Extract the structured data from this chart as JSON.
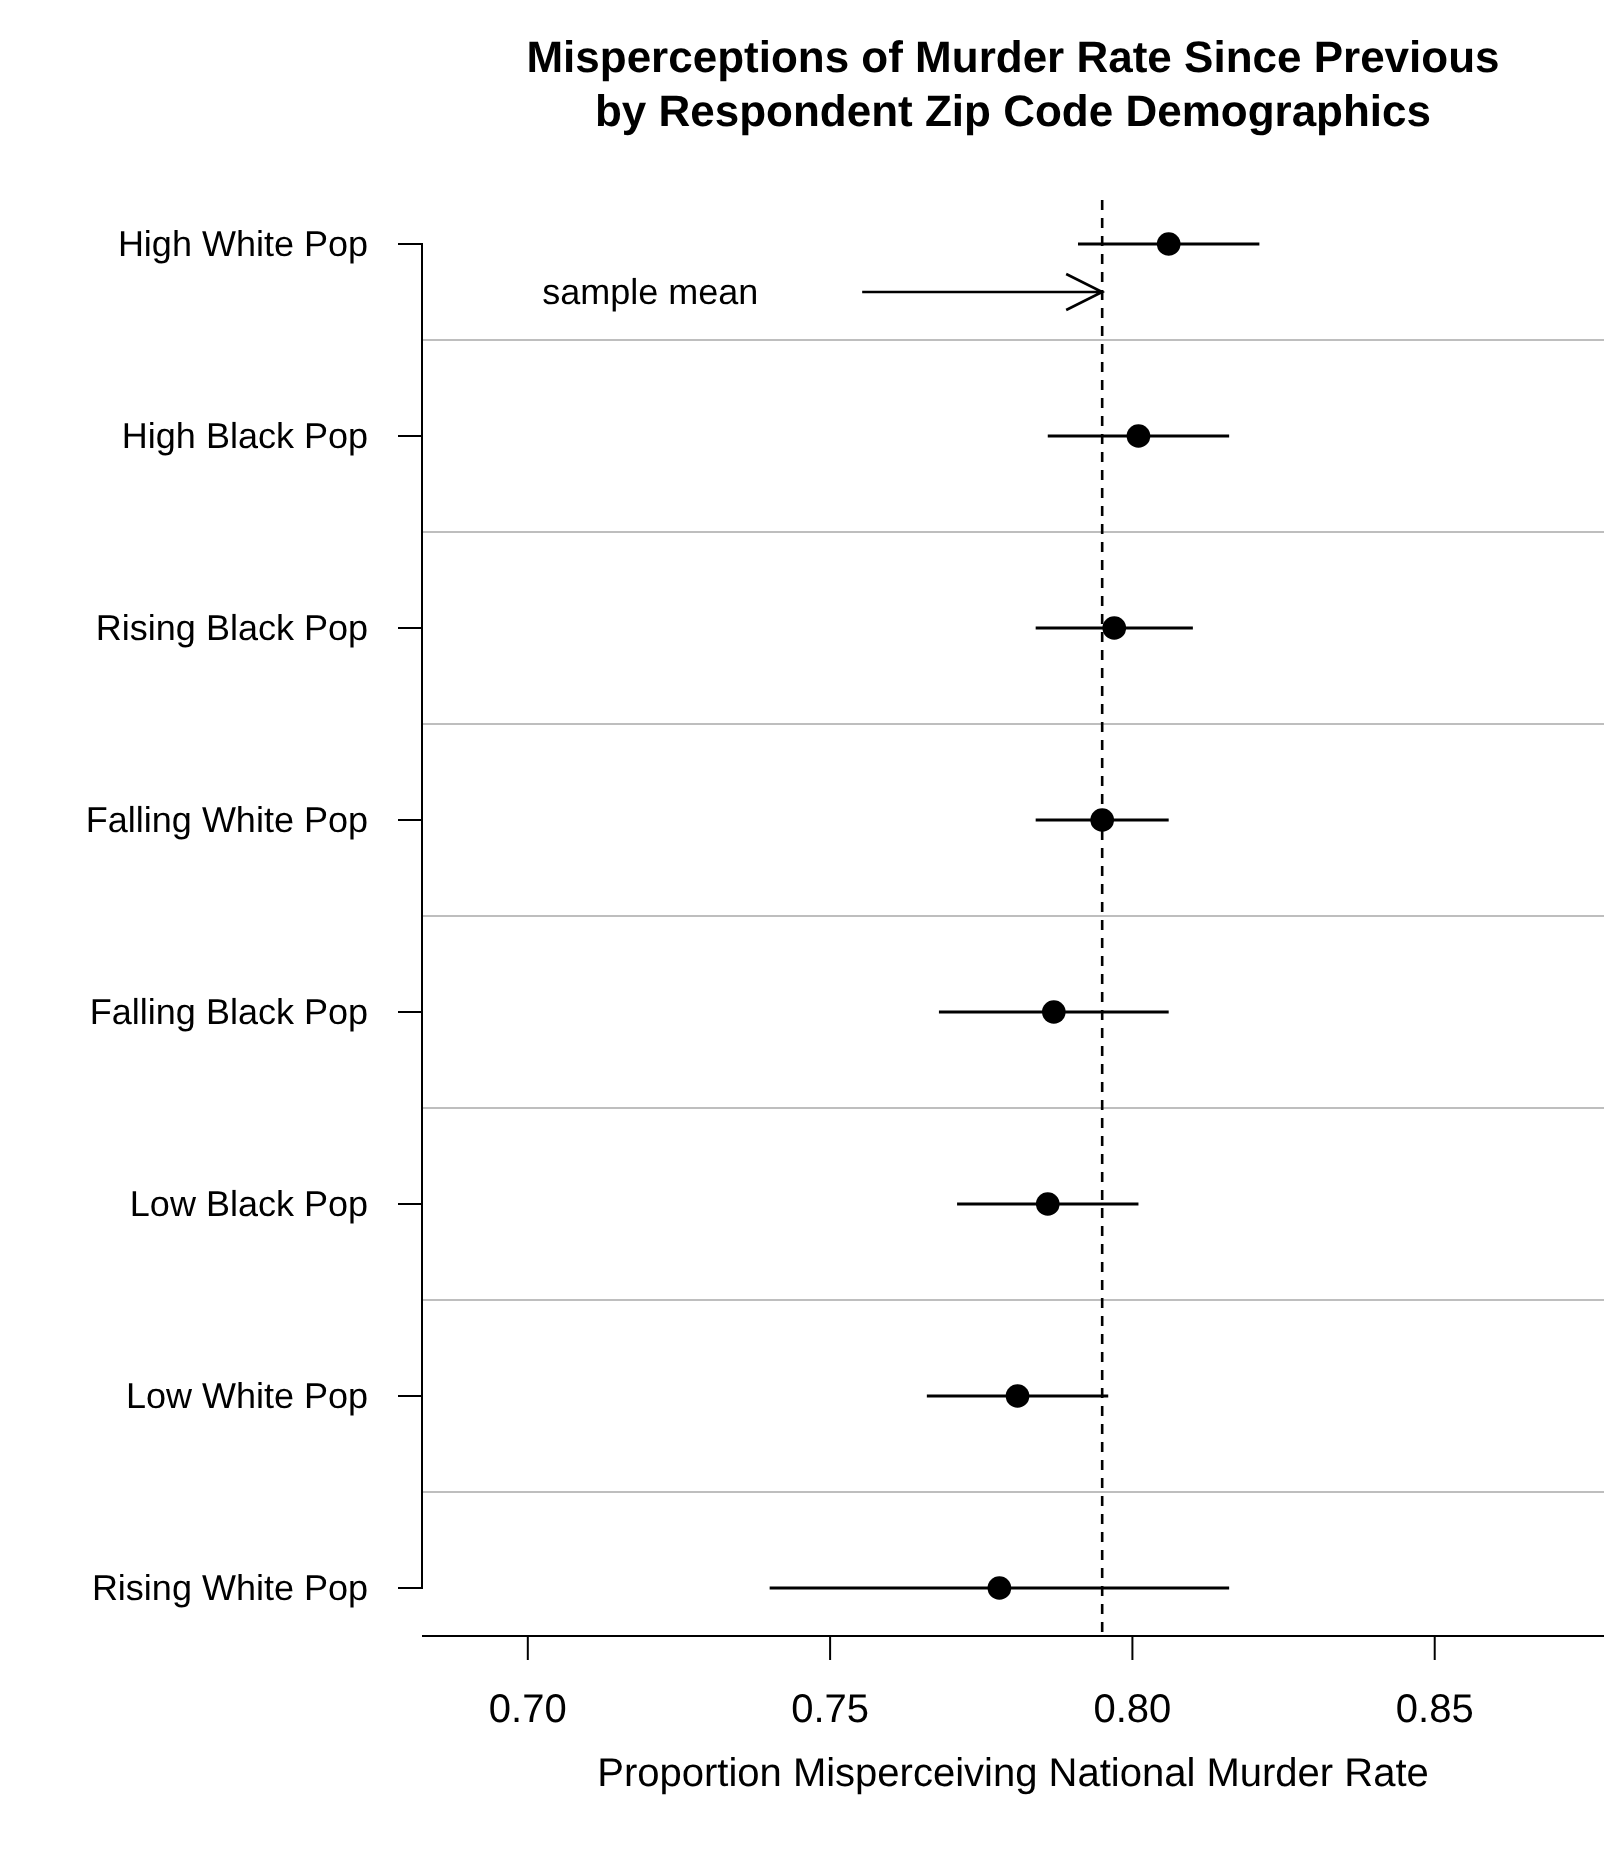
{
  "chart_data": {
    "type": "scatter",
    "title": "Misperceptions of Murder Rate Since Previous\nby Respondent Zip Code Demographics",
    "xlabel": "Proportion Misperceiving National Murder Rate",
    "categories": [
      "High White Pop",
      "High Black Pop",
      "Rising Black Pop",
      "Falling White Pop",
      "Falling Black Pop",
      "Low Black Pop",
      "Low White Pop",
      "Rising White Pop"
    ],
    "orientation": "horizontal",
    "series": [
      {
        "color": "#000000",
        "values": [
          0.806,
          0.801,
          0.797,
          0.795,
          0.787,
          0.786,
          0.781,
          0.778
        ],
        "errors": [
          [
            0.791,
            0.821
          ],
          [
            0.786,
            0.816
          ],
          [
            0.784,
            0.81
          ],
          [
            0.784,
            0.806
          ],
          [
            0.768,
            0.806
          ],
          [
            0.771,
            0.801
          ],
          [
            0.766,
            0.796
          ],
          [
            0.74,
            0.816
          ]
        ]
      }
    ],
    "xlim": [
      0.6825,
      0.878
    ],
    "xticks": [
      {
        "value": 0.7,
        "label": "0.70"
      },
      {
        "value": 0.75,
        "label": "0.75"
      },
      {
        "value": 0.8,
        "label": "0.80"
      },
      {
        "value": 0.85,
        "label": "0.85"
      }
    ],
    "ref_lines": [
      {
        "axis": "x",
        "value": 0.795,
        "label": "sample mean",
        "line_style": "dashed",
        "color": "#000000"
      }
    ],
    "grid": "y",
    "marker": "circle"
  }
}
